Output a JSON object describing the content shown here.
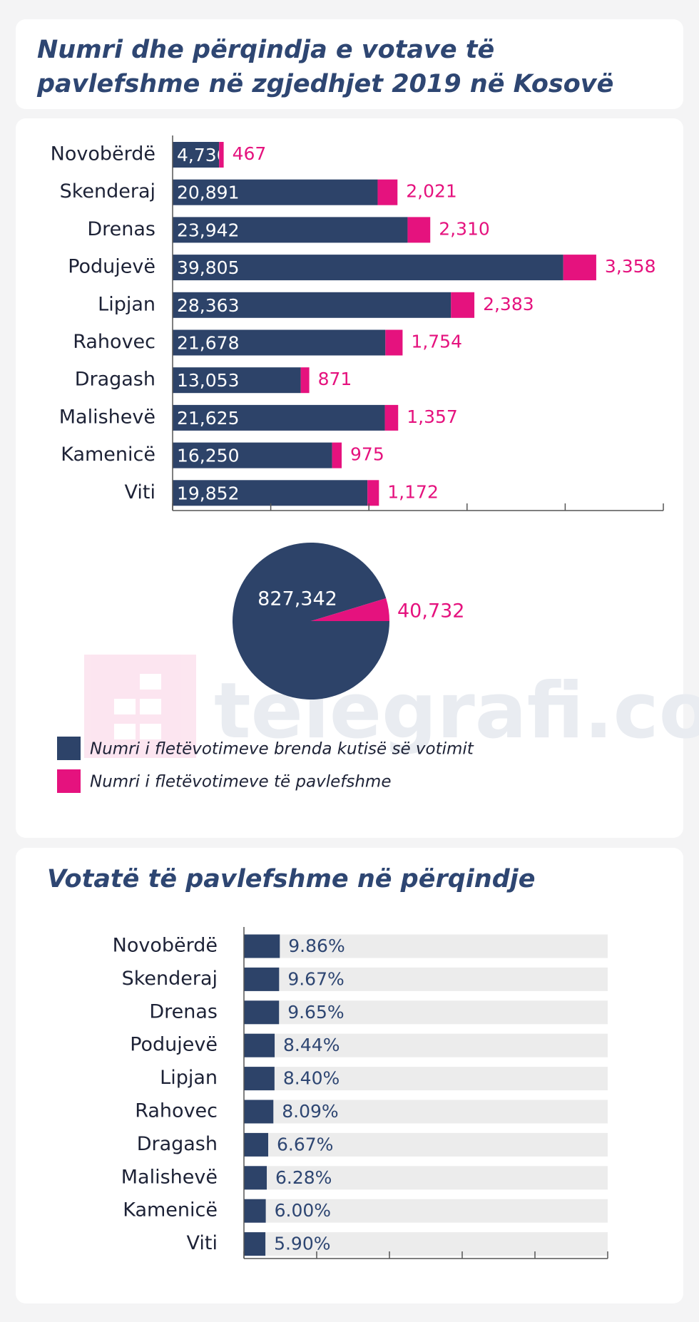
{
  "title": "Numri dhe përqindja e votave të pavlefshme në zgjedhjet 2019 në Kosovë",
  "watermark": "telegrafi.com",
  "chart_data": [
    {
      "type": "stacked-bar",
      "categories": [
        "Novobërdë",
        "Skenderaj",
        "Drenas",
        "Podujevë",
        "Lipjan",
        "Rahovec",
        "Dragash",
        "Malishevë",
        "Kamenicë",
        "Viti"
      ],
      "series": [
        {
          "name": "Numri i fletëvotimeve brenda kutisë së votimit",
          "color": "#2d4369",
          "values": [
            4736,
            20891,
            23942,
            39805,
            28363,
            21678,
            13053,
            21625,
            16250,
            19852
          ],
          "value_labels": [
            "4,736",
            "20,891",
            "23,942",
            "39,805",
            "28,363",
            "21,678",
            "13,053",
            "21,625",
            "16,250",
            "19,852"
          ]
        },
        {
          "name": "Numri i fletëvotimeve të pavlefshme",
          "color": "#e5127e",
          "values": [
            467,
            2021,
            2310,
            3358,
            2383,
            1754,
            871,
            1357,
            975,
            1172
          ],
          "value_labels": [
            "467",
            "2,021",
            "2,310",
            "3,358",
            "2,383",
            "1,754",
            "871",
            "1,357",
            "975",
            "1,172"
          ]
        }
      ],
      "xlim": [
        0,
        50000
      ],
      "xticks": [
        0,
        10000,
        20000,
        30000,
        40000,
        50000
      ]
    },
    {
      "type": "pie",
      "values": [
        827342,
        40732
      ],
      "value_labels": [
        "827,342",
        "40,732"
      ],
      "colors": [
        "#2d4369",
        "#e5127e"
      ]
    },
    {
      "type": "bar",
      "title": "Votatë të pavlefshme në përqindje",
      "categories": [
        "Novobërdë",
        "Skenderaj",
        "Drenas",
        "Podujevë",
        "Lipjan",
        "Rahovec",
        "Dragash",
        "Malishevë",
        "Kamenicë",
        "Viti"
      ],
      "values": [
        9.86,
        9.67,
        9.65,
        8.44,
        8.4,
        8.09,
        6.67,
        6.28,
        6.0,
        5.9
      ],
      "value_labels": [
        "9.86%",
        "9.67%",
        "9.65%",
        "8.44%",
        "8.40%",
        "8.09%",
        "6.67%",
        "6.28%",
        "6.00%",
        "5.90%"
      ],
      "color": "#2d4369",
      "track_color": "#ececec",
      "xlim": [
        0,
        100
      ],
      "xticks": [
        0,
        20,
        40,
        60,
        80,
        100
      ]
    }
  ]
}
